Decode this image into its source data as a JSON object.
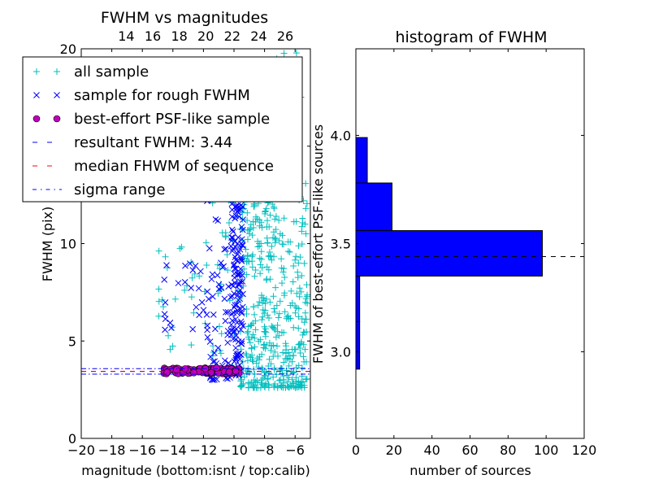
{
  "figure": {
    "background": "#ffffff"
  },
  "chart_data": [
    {
      "type": "scatter",
      "title": "FWHM vs magnitudes",
      "xlabel": "magnitude (bottom:isnt / top:calib)",
      "ylabel": "FWHM (pix)",
      "xlim": [
        -20,
        -5
      ],
      "ylim": [
        0,
        20
      ],
      "top_xlim": [
        10.6,
        27.9
      ],
      "xticks": [
        -20,
        -18,
        -16,
        -14,
        -12,
        -10,
        -8,
        -6
      ],
      "xtick_labels": [
        "−20",
        "−18",
        "−16",
        "−14",
        "−12",
        "−10",
        "−8",
        "−6"
      ],
      "yticks": [
        0,
        5,
        10,
        15,
        20
      ],
      "ytick_labels": [
        "0",
        "5",
        "10",
        "15",
        "20"
      ],
      "top_xticks": [
        14,
        16,
        18,
        20,
        22,
        24,
        26
      ],
      "top_xtick_labels": [
        "14",
        "16",
        "18",
        "20",
        "22",
        "24",
        "26"
      ],
      "grid": false,
      "legend_position": "top-left",
      "legend": [
        {
          "label": "all sample",
          "marker": "plus",
          "color": "#00bfbf"
        },
        {
          "label": "sample for rough FWHM",
          "marker": "x",
          "color": "#0000ff"
        },
        {
          "label": "best-effort PSF-like sample",
          "marker": "circle",
          "color": "#bf00bf"
        },
        {
          "label": "resultant FWHM: 3.44",
          "marker": "dashed",
          "color": "#0000ff"
        },
        {
          "label": "median FHWM of sequence",
          "marker": "dashed",
          "color": "#ff0000"
        },
        {
          "label": "sigma range",
          "marker": "dashdot",
          "color": "#0000ff"
        }
      ],
      "hlines": [
        {
          "name": "resultant FWHM",
          "y": 3.44,
          "style": "dashed",
          "color": "#0000ff"
        },
        {
          "name": "median FHWM of sequence",
          "y": 3.44,
          "style": "dashed",
          "color": "#ff0000"
        },
        {
          "name": "sigma range low",
          "y": 3.3,
          "style": "dashdot",
          "color": "#0000ff"
        },
        {
          "name": "sigma range high",
          "y": 3.58,
          "style": "dashdot",
          "color": "#0000ff"
        }
      ],
      "series": [
        {
          "name": "all sample",
          "marker": "plus",
          "color": "#00bfbf",
          "clusters": [
            {
              "x_range": [
                -9.6,
                -5.2
              ],
              "y_range": [
                2.6,
                14
              ],
              "count": 420,
              "skew": "low"
            },
            {
              "x_range": [
                -9.6,
                -7.0
              ],
              "y_range": [
                9,
                19.5
              ],
              "count": 110,
              "skew": "none"
            },
            {
              "x_range": [
                -15.0,
                -11.5
              ],
              "y_range": [
                4.5,
                10.5
              ],
              "count": 28,
              "skew": "none"
            },
            {
              "x_range": [
                -11.5,
                -9.6
              ],
              "y_range": [
                3.2,
                14
              ],
              "count": 40,
              "skew": "none"
            },
            {
              "x_range": [
                -7.0,
                -5.0
              ],
              "y_range": [
                12,
                19.8
              ],
              "count": 12,
              "skew": "none"
            }
          ]
        },
        {
          "name": "sample for rough FWHM",
          "marker": "x",
          "color": "#0000ff",
          "clusters": [
            {
              "x_range": [
                -10.2,
                -9.4
              ],
              "y_range": [
                3.2,
                12.3
              ],
              "count": 130,
              "skew": "none"
            },
            {
              "x_range": [
                -11.8,
                -10.2
              ],
              "y_range": [
                3.0,
                12.5
              ],
              "count": 60,
              "skew": "low"
            },
            {
              "x_range": [
                -14.6,
                -11.8
              ],
              "y_range": [
                5.0,
                9.0
              ],
              "count": 22,
              "skew": "none"
            }
          ]
        },
        {
          "name": "best-effort PSF-like sample",
          "marker": "circle",
          "color": "#bf00bf",
          "clusters": [
            {
              "x_range": [
                -14.6,
                -9.6
              ],
              "y_range": [
                3.32,
                3.62
              ],
              "count": 95,
              "skew": "none"
            }
          ]
        }
      ]
    },
    {
      "type": "bar",
      "orientation": "horizontal",
      "title": "histogram of FWHM",
      "xlabel": "number of sources",
      "ylabel": "FWHM of best-effort PSF-like sources",
      "xlim": [
        0,
        120
      ],
      "ylim": [
        2.6,
        4.4
      ],
      "xticks": [
        0,
        20,
        40,
        60,
        80,
        100,
        120
      ],
      "xtick_labels": [
        "0",
        "20",
        "40",
        "60",
        "80",
        "100",
        "120"
      ],
      "yticks": [
        3.0,
        3.5,
        4.0
      ],
      "ytick_labels": [
        "3.0",
        "3.5",
        "4.0"
      ],
      "bar_color": "#0000ff",
      "bins": [
        {
          "y_from": 2.92,
          "y_to": 3.14,
          "count": 2
        },
        {
          "y_from": 3.14,
          "y_to": 3.35,
          "count": 2
        },
        {
          "y_from": 3.35,
          "y_to": 3.56,
          "count": 98
        },
        {
          "y_from": 3.56,
          "y_to": 3.78,
          "count": 19
        },
        {
          "y_from": 3.78,
          "y_to": 3.99,
          "count": 6
        }
      ],
      "hlines": [
        {
          "name": "resultant FWHM",
          "y": 3.44,
          "style": "dashed",
          "color": "#000000"
        }
      ]
    }
  ]
}
